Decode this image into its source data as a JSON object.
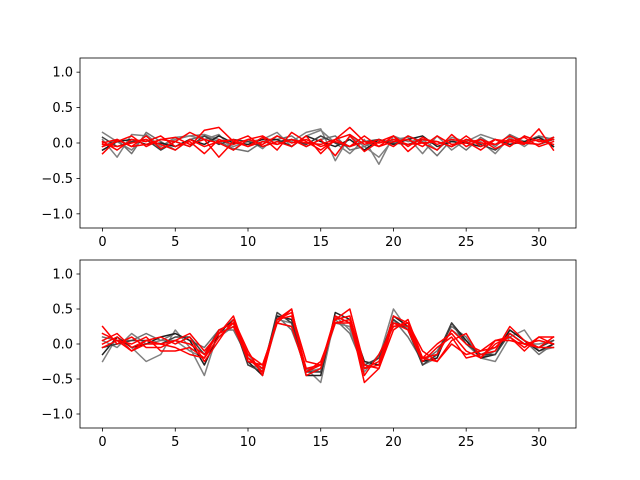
{
  "chart_data": [
    {
      "type": "line",
      "x": [
        0,
        1,
        2,
        3,
        4,
        5,
        6,
        7,
        8,
        9,
        10,
        11,
        12,
        13,
        14,
        15,
        16,
        17,
        18,
        19,
        20,
        21,
        22,
        23,
        24,
        25,
        26,
        27,
        28,
        29,
        30,
        31
      ],
      "xticks": [
        0,
        5,
        10,
        15,
        20,
        25,
        30
      ],
      "xtick_labels": [
        "0",
        "5",
        "10",
        "15",
        "20",
        "25",
        "30"
      ],
      "xlim": [
        -1.55,
        32.55
      ],
      "yticks": [
        1.0,
        0.5,
        0.0,
        -0.5,
        -1.0
      ],
      "ytick_labels": [
        "1.0",
        "0.5",
        "0.0",
        "−0.5",
        "−1.0"
      ],
      "ylim": [
        -1.2,
        1.2
      ],
      "grid": false,
      "series": [
        {
          "color": "#808080",
          "values": [
            0.15,
            0.02,
            -0.1,
            0.12,
            -0.05,
            0.08,
            0.1,
            0.05,
            0.12,
            -0.1,
            0.05,
            -0.08,
            0.1,
            0.02,
            0.15,
            0.2,
            -0.25,
            0.1,
            -0.05,
            -0.2,
            0.05,
            0.08,
            -0.15,
            0.1,
            -0.1,
            0.05,
            0.02,
            -0.15,
            0.08,
            -0.05,
            0.1,
            -0.05
          ]
        },
        {
          "color": "#808080",
          "values": [
            0.05,
            -0.2,
            0.12,
            0.1,
            -0.05,
            0.05,
            0.1,
            0.12,
            0.05,
            -0.05,
            0.02,
            0.05,
            0.15,
            -0.05,
            0.1,
            0.18,
            0.0,
            -0.15,
            0.05,
            -0.3,
            0.1,
            0.02,
            0.05,
            -0.1,
            0.08,
            0.02,
            0.12,
            0.05,
            -0.05,
            0.1,
            0.02,
            0.08
          ]
        },
        {
          "color": "#707070",
          "values": [
            -0.05,
            0.05,
            -0.15,
            0.15,
            0.02,
            -0.1,
            0.05,
            0.1,
            0.02,
            -0.08,
            -0.12,
            0.02,
            0.05,
            0.1,
            -0.05,
            0.05,
            0.1,
            -0.1,
            -0.05,
            0.05,
            -0.02,
            0.1,
            0.02,
            -0.18,
            0.05,
            -0.1,
            0.08,
            -0.05,
            0.12,
            0.02,
            0.1,
            0.05
          ]
        },
        {
          "color": "#202020",
          "values": [
            -0.1,
            0.02,
            0.05,
            -0.02,
            0.0,
            -0.05,
            0.05,
            -0.02,
            0.1,
            0.0,
            -0.02,
            0.05,
            0.05,
            -0.05,
            0.1,
            0.02,
            -0.05,
            0.05,
            -0.1,
            0.05,
            -0.02,
            0.05,
            0.1,
            -0.05,
            0.02,
            0.0,
            -0.05,
            0.05,
            -0.02,
            0.02,
            0.08,
            -0.05
          ]
        },
        {
          "color": "#404040",
          "values": [
            0.08,
            -0.05,
            0.02,
            0.05,
            -0.1,
            0.02,
            -0.05,
            0.1,
            -0.02,
            0.05,
            0.02,
            -0.05,
            0.02,
            0.05,
            -0.02,
            0.1,
            0.0,
            -0.05,
            0.02,
            0.05,
            0.0,
            -0.02,
            0.05,
            0.02,
            -0.05,
            0.05,
            -0.02,
            -0.1,
            0.05,
            0.0,
            -0.02,
            0.05
          ]
        },
        {
          "color": "#ff0000",
          "values": [
            -0.05,
            0.02,
            0.1,
            -0.05,
            0.05,
            0.02,
            -0.05,
            0.18,
            0.22,
            0.02,
            -0.05,
            0.08,
            -0.1,
            0.15,
            0.02,
            -0.1,
            0.05,
            0.12,
            -0.02,
            0.05,
            -0.05,
            0.1,
            0.0,
            -0.1,
            0.12,
            -0.05,
            0.05,
            -0.02,
            0.1,
            0.0,
            0.05,
            -0.02
          ]
        },
        {
          "color": "#ff0000",
          "values": [
            -0.15,
            0.05,
            -0.05,
            0.1,
            -0.08,
            0.02,
            0.15,
            0.05,
            -0.2,
            0.02,
            0.1,
            -0.05,
            0.02,
            -0.05,
            0.1,
            -0.15,
            0.05,
            0.22,
            0.02,
            -0.05,
            0.1,
            -0.12,
            0.05,
            0.02,
            -0.05,
            0.1,
            -0.05,
            0.05,
            0.02,
            0.08,
            -0.05,
            0.02
          ]
        },
        {
          "color": "#ff0000",
          "values": [
            0.02,
            -0.1,
            0.05,
            0.02,
            0.1,
            -0.05,
            0.02,
            -0.15,
            0.05,
            -0.02,
            0.05,
            0.1,
            -0.02,
            0.05,
            -0.05,
            0.05,
            -0.18,
            0.1,
            -0.12,
            0.02,
            0.1,
            -0.05,
            0.08,
            -0.02,
            0.05,
            0.02,
            -0.1,
            0.05,
            -0.05,
            0.1,
            0.02,
            0.05
          ]
        },
        {
          "color": "#ff0000",
          "values": [
            0.0,
            0.05,
            -0.05,
            -0.02,
            0.05,
            0.08,
            -0.02,
            0.05,
            0.0,
            -0.1,
            0.05,
            -0.02,
            0.1,
            0.0,
            0.05,
            -0.05,
            0.02,
            -0.05,
            0.1,
            -0.05,
            0.02,
            0.05,
            -0.05,
            0.1,
            -0.02,
            0.0,
            0.05,
            -0.08,
            0.02,
            -0.02,
            0.2,
            -0.1
          ]
        },
        {
          "color": "#ff0000",
          "values": [
            -0.02,
            -0.05,
            0.0,
            0.05,
            -0.02,
            -0.1,
            0.05,
            -0.05,
            0.02,
            0.05,
            -0.05,
            0.02,
            -0.02,
            0.05,
            0.0,
            -0.02,
            0.05,
            -0.05,
            0.02,
            0.0,
            0.05,
            -0.02,
            0.0,
            0.02,
            -0.05,
            0.05,
            0.0,
            -0.02,
            0.05,
            0.0,
            -0.02,
            0.08
          ]
        }
      ]
    },
    {
      "type": "line",
      "x": [
        0,
        1,
        2,
        3,
        4,
        5,
        6,
        7,
        8,
        9,
        10,
        11,
        12,
        13,
        14,
        15,
        16,
        17,
        18,
        19,
        20,
        21,
        22,
        23,
        24,
        25,
        26,
        27,
        28,
        29,
        30,
        31
      ],
      "xticks": [
        0,
        5,
        10,
        15,
        20,
        25,
        30
      ],
      "xtick_labels": [
        "0",
        "5",
        "10",
        "15",
        "20",
        "25",
        "30"
      ],
      "xlim": [
        -1.55,
        32.55
      ],
      "yticks": [
        1.0,
        0.5,
        0.0,
        -0.5,
        -1.0
      ],
      "ytick_labels": [
        "1.0",
        "0.5",
        "0.0",
        "−0.5",
        "−1.0"
      ],
      "ylim": [
        -1.2,
        1.2
      ],
      "grid": false,
      "series": [
        {
          "color": "#808080",
          "values": [
            -0.25,
            0.1,
            -0.05,
            -0.25,
            -0.15,
            0.2,
            -0.05,
            -0.45,
            0.2,
            0.3,
            -0.3,
            -0.35,
            0.35,
            0.3,
            -0.35,
            -0.55,
            0.4,
            0.2,
            -0.3,
            -0.2,
            0.5,
            0.2,
            -0.3,
            -0.2,
            0.3,
            0.0,
            -0.2,
            -0.25,
            0.1,
            0.2,
            -0.1,
            -0.05
          ]
        },
        {
          "color": "#808080",
          "values": [
            0.05,
            -0.05,
            0.15,
            0.0,
            0.05,
            0.05,
            -0.1,
            -0.2,
            0.1,
            0.25,
            -0.15,
            -0.4,
            0.3,
            0.25,
            -0.4,
            -0.35,
            0.3,
            0.25,
            -0.4,
            -0.15,
            0.25,
            0.25,
            -0.3,
            -0.15,
            0.2,
            0.05,
            -0.15,
            -0.05,
            0.15,
            0.0,
            0.0,
            0.05
          ]
        },
        {
          "color": "#707070",
          "values": [
            0.1,
            0.05,
            0.05,
            0.15,
            0.05,
            0.15,
            0.05,
            -0.05,
            0.2,
            0.2,
            -0.2,
            -0.35,
            0.4,
            0.2,
            -0.35,
            -0.4,
            0.35,
            0.15,
            -0.35,
            -0.2,
            0.35,
            0.1,
            -0.25,
            -0.1,
            0.25,
            0.1,
            -0.2,
            -0.1,
            0.2,
            0.05,
            -0.15,
            0.0
          ]
        },
        {
          "color": "#202020",
          "values": [
            -0.15,
            0.1,
            -0.05,
            0.0,
            0.1,
            0.15,
            0.05,
            -0.3,
            0.15,
            0.35,
            -0.25,
            -0.45,
            0.4,
            0.35,
            -0.45,
            -0.45,
            0.45,
            0.35,
            -0.25,
            -0.3,
            0.4,
            0.25,
            -0.25,
            -0.2,
            0.3,
            0.05,
            -0.2,
            -0.15,
            0.2,
            0.05,
            -0.1,
            0.0
          ]
        },
        {
          "color": "#404040",
          "values": [
            -0.05,
            0.0,
            0.05,
            0.05,
            0.0,
            0.1,
            0.1,
            -0.15,
            0.2,
            0.3,
            -0.3,
            -0.4,
            0.45,
            0.3,
            -0.4,
            -0.4,
            0.4,
            0.3,
            -0.3,
            -0.2,
            0.35,
            0.2,
            -0.3,
            -0.15,
            0.3,
            0.0,
            -0.15,
            -0.15,
            0.15,
            0.0,
            -0.05,
            0.05
          ]
        },
        {
          "color": "#ff0000",
          "values": [
            0.25,
            0.0,
            0.1,
            -0.05,
            -0.05,
            0.05,
            0.15,
            -0.1,
            0.15,
            0.4,
            -0.2,
            -0.35,
            0.35,
            0.5,
            -0.45,
            -0.35,
            0.35,
            0.5,
            -0.3,
            -0.35,
            0.3,
            0.2,
            -0.25,
            -0.05,
            0.1,
            -0.2,
            -0.15,
            -0.1,
            0.25,
            0.05,
            -0.05,
            0.1
          ]
        },
        {
          "color": "#ff0000",
          "values": [
            0.05,
            0.15,
            -0.05,
            0.05,
            0.1,
            0.0,
            0.1,
            -0.25,
            0.05,
            0.35,
            -0.1,
            -0.45,
            0.35,
            0.45,
            -0.25,
            -0.3,
            0.4,
            0.3,
            -0.35,
            -0.3,
            0.4,
            0.3,
            -0.1,
            -0.25,
            0.05,
            0.15,
            -0.2,
            0.0,
            0.1,
            -0.1,
            0.1,
            0.0
          ]
        },
        {
          "color": "#ff0000",
          "values": [
            -0.05,
            0.05,
            -0.1,
            0.0,
            0.0,
            -0.05,
            -0.15,
            -0.2,
            0.1,
            0.3,
            -0.15,
            -0.3,
            0.3,
            0.25,
            -0.4,
            -0.25,
            0.3,
            0.35,
            -0.55,
            -0.35,
            0.2,
            0.35,
            -0.2,
            -0.25,
            0.0,
            -0.15,
            -0.1,
            0.05,
            0.05,
            0.0,
            -0.05,
            -0.05
          ]
        },
        {
          "color": "#ff0000",
          "values": [
            0.15,
            0.05,
            0.0,
            0.1,
            -0.1,
            -0.1,
            -0.05,
            -0.2,
            0.2,
            0.3,
            -0.25,
            -0.3,
            0.3,
            0.5,
            -0.4,
            -0.3,
            0.3,
            0.3,
            -0.45,
            -0.15,
            0.25,
            0.3,
            -0.2,
            0.0,
            0.15,
            -0.1,
            -0.2,
            0.05,
            0.1,
            -0.05,
            0.1,
            0.1
          ]
        },
        {
          "color": "#ff0000",
          "values": [
            0.0,
            0.1,
            -0.1,
            0.05,
            0.0,
            0.05,
            0.0,
            -0.15,
            0.15,
            0.25,
            -0.2,
            -0.4,
            0.35,
            0.4,
            -0.35,
            -0.3,
            0.35,
            0.4,
            -0.35,
            -0.25,
            0.3,
            0.25,
            -0.2,
            -0.15,
            0.2,
            0.0,
            -0.1,
            -0.05,
            0.15,
            0.0,
            0.05,
            0.0
          ]
        }
      ]
    }
  ]
}
